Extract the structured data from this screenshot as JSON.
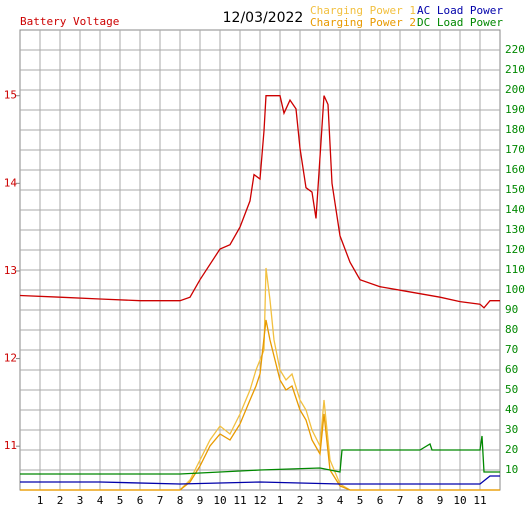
{
  "chart_data": {
    "type": "line",
    "title": "Battery Voltage",
    "date": "12/03/2022",
    "xlim": [
      0,
      24
    ],
    "xticks": [
      1,
      2,
      3,
      4,
      5,
      6,
      7,
      8,
      9,
      10,
      11,
      12,
      {
        "value": 13,
        "label": "1"
      },
      {
        "value": 14,
        "label": "2"
      },
      {
        "value": 15,
        "label": "3"
      },
      {
        "value": 16,
        "label": "4"
      },
      {
        "value": 17,
        "label": "5"
      },
      {
        "value": 18,
        "label": "6"
      },
      {
        "value": 19,
        "label": "7"
      },
      {
        "value": 20,
        "label": "8"
      },
      {
        "value": 21,
        "label": "9"
      },
      {
        "value": 22,
        "label": "10"
      },
      {
        "value": 23,
        "label": "11"
      }
    ],
    "ylim": [
      10.5,
      15.75
    ],
    "yticks": [
      11,
      12,
      13,
      14,
      15
    ],
    "y2lim": [
      0,
      230
    ],
    "y2ticks": [
      10,
      20,
      30,
      40,
      50,
      60,
      70,
      80,
      90,
      100,
      110,
      120,
      130,
      140,
      150,
      160,
      170,
      180,
      190,
      200,
      210,
      220
    ],
    "grid": true,
    "series": [
      {
        "name": "Battery Voltage",
        "color": "#cc0000",
        "axis": "y",
        "x": [
          0,
          2,
          4,
          6,
          8,
          8.5,
          9,
          10,
          10.5,
          11,
          11.5,
          11.7,
          12,
          12.2,
          12.3,
          13,
          13.2,
          13.5,
          13.8,
          14,
          14.3,
          14.6,
          14.8,
          15.2,
          15.4,
          15.6,
          16,
          16.5,
          17,
          18,
          19,
          20,
          21,
          22,
          23,
          23.2,
          23.5,
          24
        ],
        "values": [
          12.72,
          12.7,
          12.68,
          12.66,
          12.66,
          12.7,
          12.9,
          13.25,
          13.3,
          13.5,
          13.8,
          14.1,
          14.05,
          14.6,
          15,
          15,
          14.8,
          14.95,
          14.85,
          14.4,
          13.95,
          13.9,
          13.6,
          15,
          14.9,
          14,
          13.4,
          13.1,
          12.9,
          12.82,
          12.78,
          12.74,
          12.7,
          12.65,
          12.62,
          12.58,
          12.66,
          12.66
        ]
      },
      {
        "name": "Charging Power 1",
        "color": "#f2c040",
        "axis": "y2",
        "x": [
          0,
          8,
          8.5,
          9,
          9.5,
          10,
          10.5,
          11,
          11.5,
          11.8,
          12,
          12.2,
          12.3,
          12.5,
          12.7,
          13,
          13.3,
          13.6,
          14,
          14.3,
          14.6,
          15,
          15.2,
          15.5,
          16,
          16.5,
          24
        ],
        "values": [
          0,
          0,
          5,
          15,
          25,
          32,
          28,
          38,
          50,
          60,
          65,
          70,
          111,
          95,
          75,
          60,
          55,
          58,
          45,
          40,
          30,
          22,
          45,
          15,
          3,
          0,
          0
        ]
      },
      {
        "name": "Charging Power 2",
        "color": "#e89a00",
        "axis": "y2",
        "x": [
          0,
          8,
          8.5,
          9,
          9.5,
          10,
          10.5,
          11,
          11.5,
          11.8,
          12,
          12.3,
          12.5,
          13,
          13.3,
          13.6,
          14,
          14.3,
          14.6,
          15,
          15.2,
          15.5,
          16,
          16.5,
          24
        ],
        "values": [
          0,
          0,
          4,
          12,
          22,
          28,
          25,
          33,
          45,
          52,
          58,
          85,
          75,
          55,
          50,
          52,
          40,
          35,
          25,
          18,
          38,
          10,
          2,
          0,
          0
        ]
      },
      {
        "name": "AC Load Power",
        "color": "#0000aa",
        "axis": "y2",
        "x": [
          0,
          4,
          8,
          12,
          16,
          20,
          23,
          23.5,
          24
        ],
        "values": [
          4,
          4,
          3,
          4,
          3,
          3,
          3,
          7,
          7
        ]
      },
      {
        "name": "DC Load Power",
        "color": "#008800",
        "axis": "y2",
        "x": [
          0,
          8,
          12,
          15,
          16,
          16.1,
          20,
          20.5,
          20.6,
          23,
          23.1,
          23.2,
          24
        ],
        "values": [
          8,
          8,
          10,
          11,
          9,
          20,
          20,
          23,
          20,
          20,
          27,
          9,
          9
        ]
      }
    ]
  }
}
